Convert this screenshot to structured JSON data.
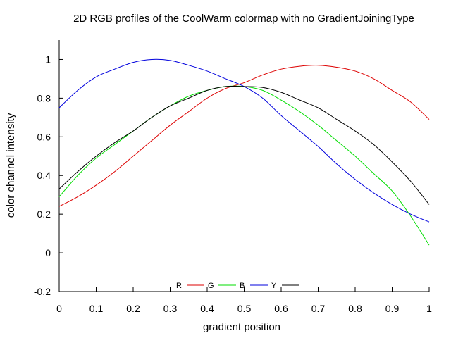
{
  "chart_data": {
    "type": "line",
    "title": "2D RGB profiles of the CoolWarm colormap with no GradientJoiningType",
    "xlabel": "gradient position",
    "ylabel": "color channel intensity",
    "xlim": [
      0,
      1
    ],
    "ylim": [
      -0.2,
      1.1
    ],
    "xticks": [
      0,
      0.1,
      0.2,
      0.3,
      0.4,
      0.5,
      0.6,
      0.7,
      0.8,
      0.9,
      1
    ],
    "xtick_labels": [
      "0",
      "0.1",
      "0.2",
      "0.3",
      "0.4",
      "0.5",
      "0.6",
      "0.7",
      "0.8",
      "0.9",
      "1"
    ],
    "yticks": [
      -0.2,
      0,
      0.2,
      0.4,
      0.6,
      0.8,
      1
    ],
    "ytick_labels": [
      "-0.2",
      "0",
      "0.2",
      "0.4",
      "0.6",
      "0.8",
      "1"
    ],
    "grid": false,
    "legend_position": "bottom-center",
    "x": [
      0,
      0.05,
      0.1,
      0.15,
      0.2,
      0.25,
      0.3,
      0.35,
      0.4,
      0.45,
      0.5,
      0.55,
      0.6,
      0.65,
      0.7,
      0.75,
      0.8,
      0.85,
      0.9,
      0.95,
      1
    ],
    "series": [
      {
        "name": "R",
        "color": "#dd0000",
        "values": [
          0.24,
          0.29,
          0.35,
          0.42,
          0.5,
          0.58,
          0.66,
          0.73,
          0.8,
          0.85,
          0.88,
          0.92,
          0.95,
          0.965,
          0.97,
          0.96,
          0.94,
          0.9,
          0.84,
          0.78,
          0.69
        ]
      },
      {
        "name": "G",
        "color": "#00dd00",
        "values": [
          0.29,
          0.4,
          0.49,
          0.56,
          0.63,
          0.7,
          0.76,
          0.81,
          0.84,
          0.86,
          0.86,
          0.84,
          0.79,
          0.73,
          0.66,
          0.58,
          0.5,
          0.41,
          0.32,
          0.19,
          0.04
        ]
      },
      {
        "name": "B",
        "color": "#0000dd",
        "values": [
          0.75,
          0.84,
          0.91,
          0.95,
          0.985,
          1.0,
          0.995,
          0.97,
          0.94,
          0.9,
          0.86,
          0.8,
          0.71,
          0.63,
          0.55,
          0.46,
          0.38,
          0.31,
          0.25,
          0.2,
          0.16
        ]
      },
      {
        "name": "Y",
        "color": "#000000",
        "values": [
          0.33,
          0.42,
          0.5,
          0.57,
          0.63,
          0.7,
          0.76,
          0.8,
          0.84,
          0.86,
          0.86,
          0.855,
          0.83,
          0.79,
          0.75,
          0.69,
          0.63,
          0.56,
          0.47,
          0.37,
          0.25
        ]
      }
    ]
  }
}
